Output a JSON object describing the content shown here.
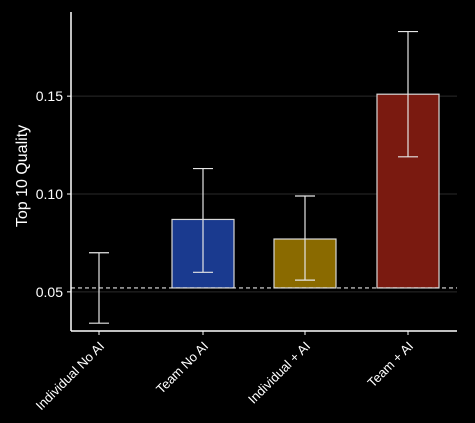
{
  "chart_data": {
    "type": "bar",
    "title": "",
    "xlabel": "",
    "ylabel": "Top 10 Quality",
    "categories": [
      "Individual No AI",
      "Team No AI",
      "Individual + AI",
      "Team + AI"
    ],
    "values": [
      0.052,
      0.087,
      0.077,
      0.151
    ],
    "error_low": [
      0.034,
      0.06,
      0.056,
      0.119
    ],
    "error_high": [
      0.07,
      0.113,
      0.099,
      0.183
    ],
    "bar_colors": [
      "#000000",
      "#1a3a8f",
      "#8a6a00",
      "#7a1a10"
    ],
    "baseline": 0.052,
    "ylim": [
      0.03,
      0.193
    ],
    "yticks": [
      0.05,
      0.1,
      0.15
    ],
    "ytick_labels": [
      "0.05",
      "0.10",
      "0.15"
    ],
    "grid": "horizontal",
    "legend": "none"
  }
}
